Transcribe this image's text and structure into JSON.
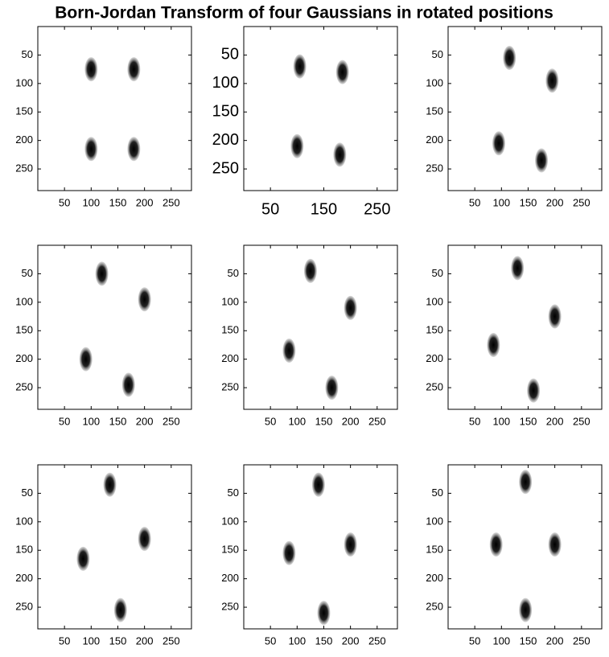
{
  "title": "Born-Jordan Transform of four Gaussians in rotated positions",
  "chart_data": [
    {
      "type": "image",
      "xlim": [
        0,
        288
      ],
      "ylim": [
        0,
        288
      ],
      "y_reversed": true,
      "xticks": [
        50,
        100,
        150,
        200,
        250
      ],
      "yticks": [
        50,
        100,
        150,
        200,
        250
      ],
      "x": [
        100,
        180,
        100,
        180
      ],
      "y": [
        75,
        75,
        215,
        215
      ]
    },
    {
      "type": "image",
      "xlim": [
        0,
        288
      ],
      "ylim": [
        0,
        288
      ],
      "y_reversed": true,
      "large_ticks": true,
      "xticks": [
        50,
        150,
        250
      ],
      "yticks": [
        50,
        100,
        150,
        200,
        250
      ],
      "x": [
        105,
        185,
        100,
        180
      ],
      "y": [
        70,
        80,
        210,
        225
      ]
    },
    {
      "type": "image",
      "xlim": [
        0,
        288
      ],
      "ylim": [
        0,
        288
      ],
      "y_reversed": true,
      "xticks": [
        50,
        100,
        150,
        200,
        250
      ],
      "yticks": [
        50,
        100,
        150,
        200,
        250
      ],
      "x": [
        115,
        195,
        95,
        175
      ],
      "y": [
        55,
        95,
        205,
        235
      ]
    },
    {
      "type": "image",
      "xlim": [
        0,
        288
      ],
      "ylim": [
        0,
        288
      ],
      "y_reversed": true,
      "xticks": [
        50,
        100,
        150,
        200,
        250
      ],
      "yticks": [
        50,
        100,
        150,
        200,
        250
      ],
      "x": [
        120,
        200,
        90,
        170
      ],
      "y": [
        50,
        95,
        200,
        245
      ]
    },
    {
      "type": "image",
      "xlim": [
        0,
        288
      ],
      "ylim": [
        0,
        288
      ],
      "y_reversed": true,
      "xticks": [
        50,
        100,
        150,
        200,
        250
      ],
      "yticks": [
        50,
        100,
        150,
        200,
        250
      ],
      "x": [
        125,
        200,
        85,
        165
      ],
      "y": [
        45,
        110,
        185,
        250
      ]
    },
    {
      "type": "image",
      "xlim": [
        0,
        288
      ],
      "ylim": [
        0,
        288
      ],
      "y_reversed": true,
      "xticks": [
        50,
        100,
        150,
        200,
        250
      ],
      "yticks": [
        50,
        100,
        150,
        200,
        250
      ],
      "x": [
        130,
        200,
        85,
        160
      ],
      "y": [
        40,
        125,
        175,
        255
      ]
    },
    {
      "type": "image",
      "xlim": [
        0,
        288
      ],
      "ylim": [
        0,
        288
      ],
      "y_reversed": true,
      "xticks": [
        50,
        100,
        150,
        200,
        250
      ],
      "yticks": [
        50,
        100,
        150,
        200,
        250
      ],
      "x": [
        135,
        200,
        85,
        155
      ],
      "y": [
        35,
        130,
        165,
        255
      ]
    },
    {
      "type": "image",
      "xlim": [
        0,
        288
      ],
      "ylim": [
        0,
        288
      ],
      "y_reversed": true,
      "xticks": [
        50,
        100,
        150,
        200,
        250
      ],
      "yticks": [
        50,
        100,
        150,
        200,
        250
      ],
      "x": [
        140,
        200,
        85,
        150
      ],
      "y": [
        35,
        140,
        155,
        260
      ]
    },
    {
      "type": "image",
      "xlim": [
        0,
        288
      ],
      "ylim": [
        0,
        288
      ],
      "y_reversed": true,
      "xticks": [
        50,
        100,
        150,
        200,
        250
      ],
      "yticks": [
        50,
        100,
        150,
        200,
        250
      ],
      "x": [
        145,
        200,
        90,
        145
      ],
      "y": [
        30,
        140,
        140,
        255
      ]
    }
  ]
}
